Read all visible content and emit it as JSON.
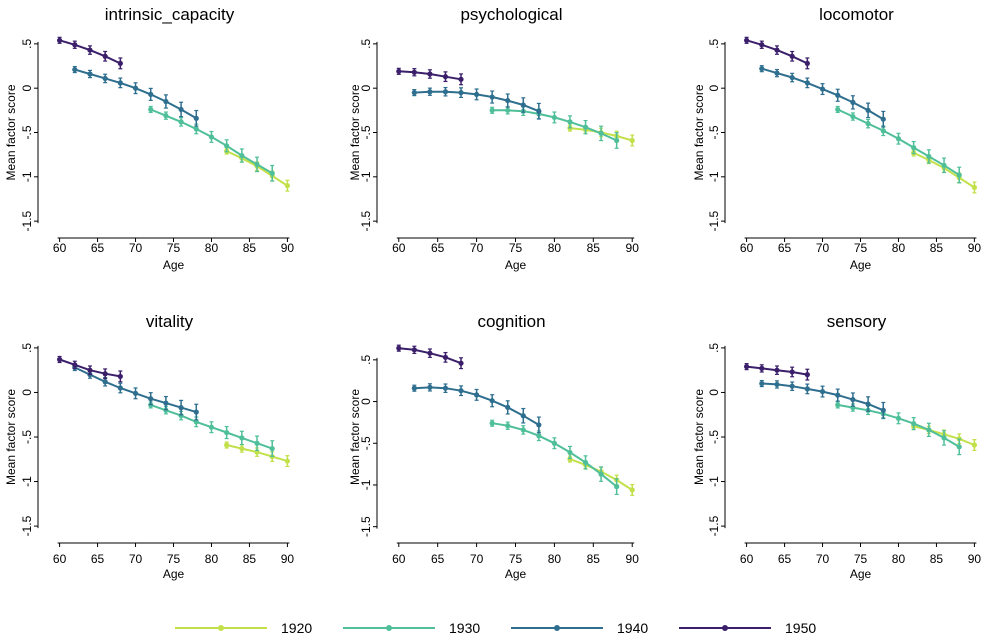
{
  "figure": {
    "legend": {
      "position": "bottom",
      "entries": [
        {
          "label": "1920",
          "color": "#c2e04a"
        },
        {
          "label": "1930",
          "color": "#4fbf9a"
        },
        {
          "label": "1940",
          "color": "#2e6e8e"
        },
        {
          "label": "1950",
          "color": "#3b1f6b"
        }
      ]
    }
  },
  "chart_data": [
    {
      "type": "line",
      "title": "intrinsic_capacity",
      "xlabel": "Age",
      "ylabel": "Mean factor score",
      "xlim": [
        59,
        91
      ],
      "ylim": [
        -1.6,
        0.6
      ],
      "xticks": [
        "60",
        "65",
        "70",
        "75",
        "80",
        "85",
        "90"
      ],
      "yticks": [
        "-1.5",
        "-1",
        "-.5",
        "0",
        ".5"
      ],
      "grid": false,
      "series": [
        {
          "name": "1920",
          "color": "#c2e04a",
          "x": [
            82,
            84,
            86,
            88,
            90
          ],
          "y": [
            -0.71,
            -0.79,
            -0.88,
            -0.99,
            -1.1
          ]
        },
        {
          "name": "1930",
          "color": "#4fbf9a",
          "x": [
            72,
            74,
            76,
            78,
            80,
            82,
            84,
            86,
            88
          ],
          "y": [
            -0.24,
            -0.31,
            -0.38,
            -0.46,
            -0.55,
            -0.65,
            -0.76,
            -0.86,
            -0.96
          ]
        },
        {
          "name": "1940",
          "color": "#2e6e8e",
          "x": [
            62,
            64,
            66,
            68,
            70,
            72,
            74,
            76,
            78
          ],
          "y": [
            0.21,
            0.16,
            0.11,
            0.06,
            0.0,
            -0.07,
            -0.15,
            -0.24,
            -0.34
          ]
        },
        {
          "name": "1950",
          "color": "#3b1f6b",
          "x": [
            60,
            62,
            64,
            66,
            68
          ],
          "y": [
            0.54,
            0.49,
            0.43,
            0.36,
            0.28
          ]
        }
      ]
    },
    {
      "type": "line",
      "title": "psychological",
      "xlabel": "Age",
      "ylabel": "Mean factor score",
      "xlim": [
        59,
        91
      ],
      "ylim": [
        -1.6,
        0.6
      ],
      "xticks": [
        "60",
        "65",
        "70",
        "75",
        "80",
        "85",
        "90"
      ],
      "yticks": [
        "-1.5",
        "-1",
        "-.5",
        "0",
        ".5"
      ],
      "grid": false,
      "series": [
        {
          "name": "1920",
          "color": "#c2e04a",
          "x": [
            82,
            84,
            86,
            88,
            90
          ],
          "y": [
            -0.45,
            -0.47,
            -0.5,
            -0.54,
            -0.59
          ]
        },
        {
          "name": "1930",
          "color": "#4fbf9a",
          "x": [
            72,
            74,
            76,
            78,
            80,
            82,
            84,
            86,
            88
          ],
          "y": [
            -0.25,
            -0.25,
            -0.26,
            -0.29,
            -0.33,
            -0.38,
            -0.44,
            -0.51,
            -0.59
          ]
        },
        {
          "name": "1940",
          "color": "#2e6e8e",
          "x": [
            62,
            64,
            66,
            68,
            70,
            72,
            74,
            76,
            78
          ],
          "y": [
            -0.05,
            -0.04,
            -0.04,
            -0.05,
            -0.07,
            -0.1,
            -0.14,
            -0.19,
            -0.26
          ]
        },
        {
          "name": "1950",
          "color": "#3b1f6b",
          "x": [
            60,
            62,
            64,
            66,
            68
          ],
          "y": [
            0.19,
            0.18,
            0.16,
            0.13,
            0.1
          ]
        }
      ]
    },
    {
      "type": "line",
      "title": "locomotor",
      "xlabel": "Age",
      "ylabel": "Mean factor score",
      "xlim": [
        59,
        91
      ],
      "ylim": [
        -1.6,
        0.6
      ],
      "xticks": [
        "60",
        "65",
        "70",
        "75",
        "80",
        "85",
        "90"
      ],
      "yticks": [
        "-1.5",
        "-1",
        "-.5",
        "0",
        ".5"
      ],
      "grid": false,
      "series": [
        {
          "name": "1920",
          "color": "#c2e04a",
          "x": [
            82,
            84,
            86,
            88,
            90
          ],
          "y": [
            -0.73,
            -0.81,
            -0.9,
            -1.01,
            -1.12
          ]
        },
        {
          "name": "1930",
          "color": "#4fbf9a",
          "x": [
            72,
            74,
            76,
            78,
            80,
            82,
            84,
            86,
            88
          ],
          "y": [
            -0.24,
            -0.32,
            -0.4,
            -0.48,
            -0.57,
            -0.67,
            -0.77,
            -0.87,
            -0.98
          ]
        },
        {
          "name": "1940",
          "color": "#2e6e8e",
          "x": [
            62,
            64,
            66,
            68,
            70,
            72,
            74,
            76,
            78
          ],
          "y": [
            0.22,
            0.17,
            0.12,
            0.06,
            -0.01,
            -0.08,
            -0.16,
            -0.25,
            -0.35
          ]
        },
        {
          "name": "1950",
          "color": "#3b1f6b",
          "x": [
            60,
            62,
            64,
            66,
            68
          ],
          "y": [
            0.54,
            0.49,
            0.43,
            0.36,
            0.28
          ]
        }
      ]
    },
    {
      "type": "line",
      "title": "vitality",
      "xlabel": "Age",
      "ylabel": "Mean factor score",
      "xlim": [
        59,
        91
      ],
      "ylim": [
        -1.6,
        0.6
      ],
      "xticks": [
        "60",
        "65",
        "70",
        "75",
        "80",
        "85",
        "90"
      ],
      "yticks": [
        "-1.5",
        "-1",
        "-.5",
        "0",
        ".5"
      ],
      "grid": false,
      "series": [
        {
          "name": "1920",
          "color": "#c2e04a",
          "x": [
            82,
            84,
            86,
            88,
            90
          ],
          "y": [
            -0.59,
            -0.63,
            -0.67,
            -0.72,
            -0.77
          ]
        },
        {
          "name": "1930",
          "color": "#4fbf9a",
          "x": [
            72,
            74,
            76,
            78,
            80,
            82,
            84,
            86,
            88
          ],
          "y": [
            -0.14,
            -0.2,
            -0.26,
            -0.33,
            -0.39,
            -0.45,
            -0.51,
            -0.57,
            -0.63
          ]
        },
        {
          "name": "1940",
          "color": "#2e6e8e",
          "x": [
            62,
            64,
            66,
            68,
            70,
            72,
            74,
            76,
            78
          ],
          "y": [
            0.28,
            0.2,
            0.12,
            0.05,
            -0.01,
            -0.07,
            -0.12,
            -0.17,
            -0.22
          ]
        },
        {
          "name": "1950",
          "color": "#3b1f6b",
          "x": [
            60,
            62,
            64,
            66,
            68
          ],
          "y": [
            0.37,
            0.31,
            0.25,
            0.21,
            0.18
          ]
        }
      ]
    },
    {
      "type": "line",
      "title": "cognition",
      "xlabel": "Age",
      "ylabel": "Mean factor score",
      "xlim": [
        59,
        91
      ],
      "ylim": [
        -1.6,
        0.75
      ],
      "xticks": [
        "60",
        "65",
        "70",
        "75",
        "80",
        "85",
        "90"
      ],
      "yticks": [
        "-1.5",
        "-1",
        "-.5",
        "0",
        ".5"
      ],
      "grid": false,
      "series": [
        {
          "name": "1920",
          "color": "#c2e04a",
          "x": [
            82,
            84,
            86,
            88,
            90
          ],
          "y": [
            -0.69,
            -0.76,
            -0.84,
            -0.94,
            -1.06
          ]
        },
        {
          "name": "1930",
          "color": "#4fbf9a",
          "x": [
            72,
            74,
            76,
            78,
            80,
            82,
            84,
            86,
            88
          ],
          "y": [
            -0.26,
            -0.29,
            -0.34,
            -0.41,
            -0.5,
            -0.61,
            -0.73,
            -0.87,
            -1.02
          ]
        },
        {
          "name": "1940",
          "color": "#2e6e8e",
          "x": [
            62,
            64,
            66,
            68,
            70,
            72,
            74,
            76,
            78
          ],
          "y": [
            0.16,
            0.17,
            0.16,
            0.13,
            0.08,
            0.01,
            -0.07,
            -0.17,
            -0.28
          ]
        },
        {
          "name": "1950",
          "color": "#3b1f6b",
          "x": [
            60,
            62,
            64,
            66,
            68
          ],
          "y": [
            0.64,
            0.62,
            0.58,
            0.53,
            0.46
          ]
        }
      ]
    },
    {
      "type": "line",
      "title": "sensory",
      "xlabel": "Age",
      "ylabel": "Mean factor score",
      "xlim": [
        59,
        91
      ],
      "ylim": [
        -1.6,
        0.6
      ],
      "xticks": [
        "60",
        "65",
        "70",
        "75",
        "80",
        "85",
        "90"
      ],
      "yticks": [
        "-1.5",
        "-1",
        "-.5",
        "0",
        ".5"
      ],
      "grid": false,
      "series": [
        {
          "name": "1920",
          "color": "#c2e04a",
          "x": [
            82,
            84,
            86,
            88,
            90
          ],
          "y": [
            -0.38,
            -0.42,
            -0.47,
            -0.52,
            -0.59
          ]
        },
        {
          "name": "1930",
          "color": "#4fbf9a",
          "x": [
            72,
            74,
            76,
            78,
            80,
            82,
            84,
            86,
            88
          ],
          "y": [
            -0.14,
            -0.17,
            -0.2,
            -0.24,
            -0.29,
            -0.35,
            -0.42,
            -0.51,
            -0.61
          ]
        },
        {
          "name": "1940",
          "color": "#2e6e8e",
          "x": [
            62,
            64,
            66,
            68,
            70,
            72,
            74,
            76,
            78
          ],
          "y": [
            0.1,
            0.09,
            0.07,
            0.04,
            0.01,
            -0.03,
            -0.08,
            -0.13,
            -0.2
          ]
        },
        {
          "name": "1950",
          "color": "#3b1f6b",
          "x": [
            60,
            62,
            64,
            66,
            68
          ],
          "y": [
            0.29,
            0.27,
            0.25,
            0.23,
            0.2
          ]
        }
      ]
    }
  ]
}
